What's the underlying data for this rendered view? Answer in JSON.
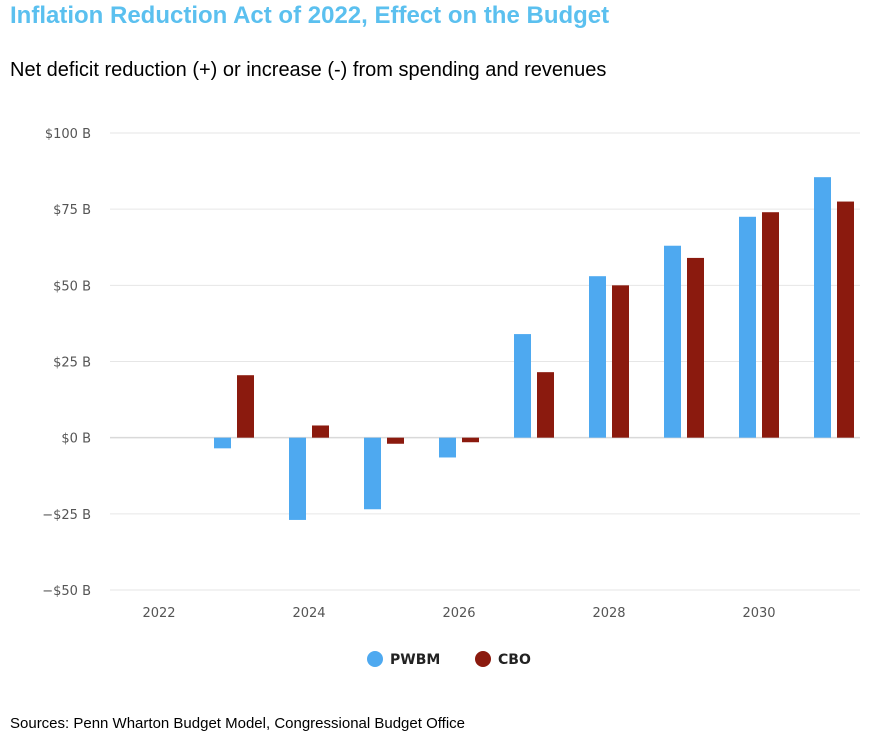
{
  "header": {
    "title": "Inflation Reduction Act of 2022, Effect on the Budget",
    "subtitle": "Net deficit reduction (+) or increase (-) from spending and revenues"
  },
  "footer": {
    "sources": "Sources: Penn Wharton Budget Model, Congressional Budget Office"
  },
  "chart_data": {
    "type": "bar",
    "title": "Inflation Reduction Act of 2022, Effect on the Budget",
    "subtitle": "Net deficit reduction (+) or increase (-) from spending and revenues",
    "xlabel": "",
    "ylabel": "",
    "categories": [
      2022,
      2023,
      2024,
      2025,
      2026,
      2027,
      2028,
      2029,
      2030,
      2031
    ],
    "x_ticks": [
      2022,
      2024,
      2026,
      2028,
      2030
    ],
    "x_tick_labels": [
      "2022",
      "2024",
      "2026",
      "2028",
      "2030"
    ],
    "y_ticks": [
      -50,
      -25,
      0,
      25,
      50,
      75,
      100
    ],
    "y_tick_labels": [
      "−$50 B",
      "−$25 B",
      "$0 B",
      "$25 B",
      "$50 B",
      "$75 B",
      "$100 B"
    ],
    "ylim": [
      -50,
      100
    ],
    "grid": true,
    "legend_position": "bottom-center",
    "series": [
      {
        "name": "PWBM",
        "color": "#4ea9f0",
        "values": [
          0,
          -3.5,
          -27,
          -23.5,
          -6.5,
          34,
          53,
          63,
          72.5,
          85.5
        ]
      },
      {
        "name": "CBO",
        "color": "#8b1a0e",
        "values": [
          0,
          20.5,
          4,
          -2,
          -1.5,
          21.5,
          50,
          59,
          74,
          77.5
        ]
      }
    ]
  }
}
